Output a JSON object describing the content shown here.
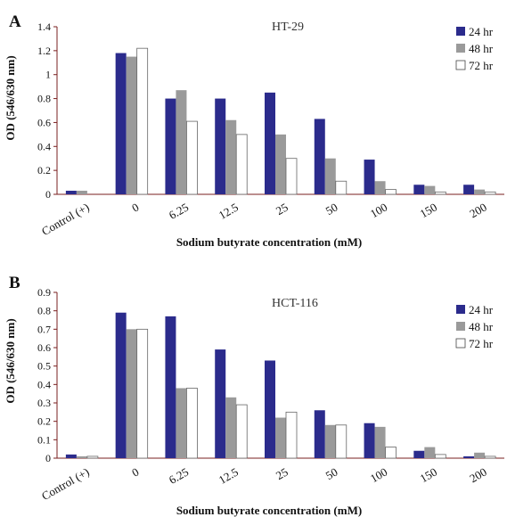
{
  "colors": {
    "series_24": "#2b2b8c",
    "series_48": "#9a9a9a",
    "series_72": "#ffffff",
    "axis": "#7a1f1f",
    "text": "#111111"
  },
  "chart_data": [
    {
      "panel_label": "A",
      "type": "bar",
      "title": "HT-29",
      "xlabel": "Sodium butyrate concentration (mM)",
      "ylabel": "OD (546/630 nm)",
      "ylim": [
        0,
        1.4
      ],
      "yticks": [
        "0",
        "0.2",
        "0.4",
        "0.6",
        "0.8",
        "1",
        "1.2",
        "1.4"
      ],
      "grid": false,
      "legend_position": "top-right",
      "categories": [
        "Control (+)",
        "0",
        "6.25",
        "12.5",
        "25",
        "50",
        "100",
        "150",
        "200"
      ],
      "series": [
        {
          "name": "24 hr",
          "values": [
            0.03,
            1.18,
            0.8,
            0.8,
            0.85,
            0.63,
            0.29,
            0.08,
            0.08
          ]
        },
        {
          "name": "48 hr",
          "values": [
            0.03,
            1.15,
            0.87,
            0.62,
            0.5,
            0.3,
            0.11,
            0.07,
            0.04
          ]
        },
        {
          "name": "72 hr",
          "values": [
            0.0,
            1.22,
            0.61,
            0.5,
            0.3,
            0.11,
            0.04,
            0.02,
            0.02
          ]
        }
      ]
    },
    {
      "panel_label": "B",
      "type": "bar",
      "title": "HCT-116",
      "xlabel": "Sodium butyrate concentration (mM)",
      "ylabel": "OD (546/630 nm)",
      "ylim": [
        0,
        0.9
      ],
      "yticks": [
        "0",
        "0.1",
        "0.2",
        "0.3",
        "0.4",
        "0.5",
        "0.6",
        "0.7",
        "0.8",
        "0.9"
      ],
      "grid": false,
      "legend_position": "top-right",
      "categories": [
        "Control (+)",
        "0",
        "6.25",
        "12.5",
        "25",
        "50",
        "100",
        "150",
        "200"
      ],
      "series": [
        {
          "name": "24 hr",
          "values": [
            0.02,
            0.79,
            0.77,
            0.59,
            0.53,
            0.26,
            0.19,
            0.04,
            0.01
          ]
        },
        {
          "name": "48 hr",
          "values": [
            0.01,
            0.7,
            0.38,
            0.33,
            0.22,
            0.18,
            0.17,
            0.06,
            0.03
          ]
        },
        {
          "name": "72 hr",
          "values": [
            0.01,
            0.7,
            0.38,
            0.29,
            0.25,
            0.18,
            0.06,
            0.02,
            0.01
          ]
        }
      ]
    }
  ]
}
